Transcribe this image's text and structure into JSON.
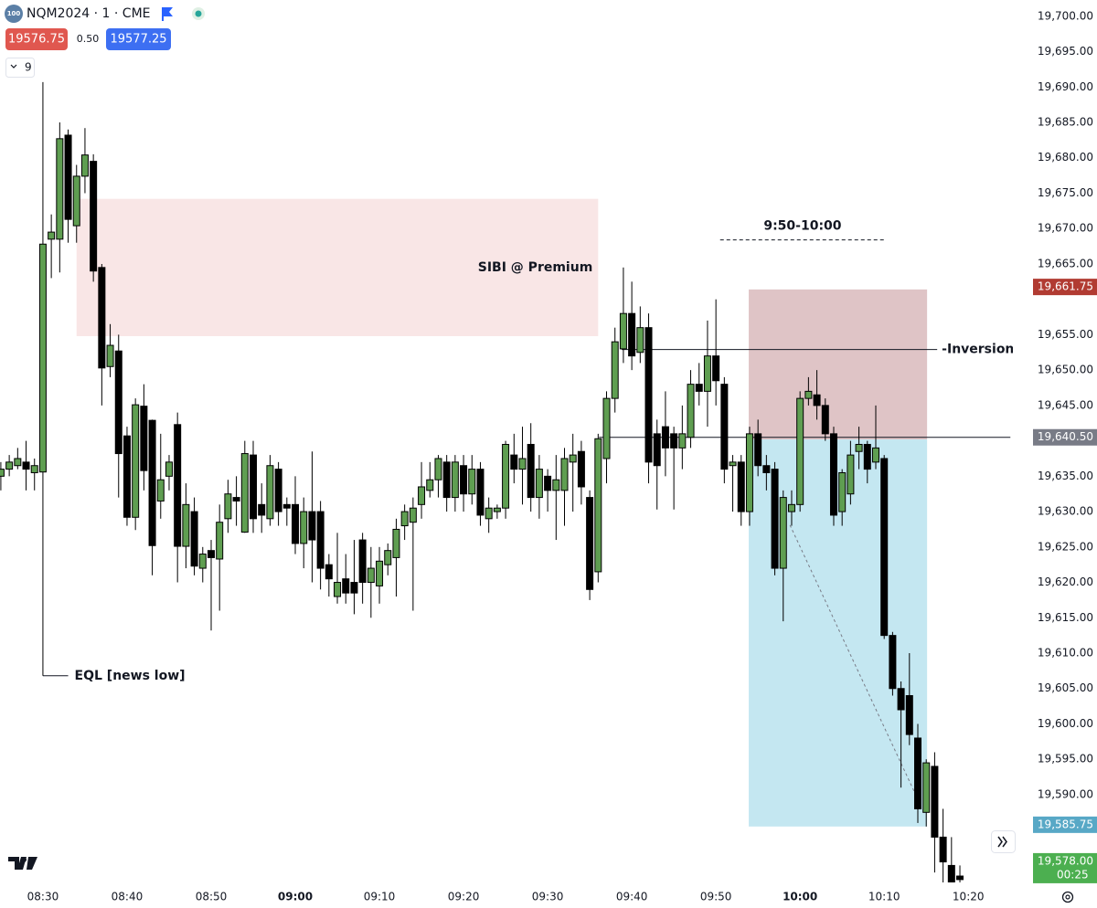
{
  "header": {
    "badge": "100",
    "symbol": "NQM2024 · 1 · CME",
    "bid": "19576.75",
    "spread": "0.50",
    "ask": "19577.25",
    "indicator_count": "9"
  },
  "chart_data": {
    "type": "candlestick",
    "x": [
      505,
      506,
      507,
      508,
      509,
      510,
      511,
      512,
      513,
      514,
      515,
      516,
      517,
      518,
      519,
      520,
      521,
      522,
      523,
      524,
      525,
      526,
      527,
      528,
      529,
      530,
      531,
      532,
      533,
      534,
      535,
      536,
      537,
      538,
      539,
      540,
      541,
      542,
      543,
      544,
      545,
      546,
      547,
      548,
      549,
      550,
      551,
      552,
      553,
      554,
      555,
      556,
      557,
      558,
      559,
      560,
      561,
      562,
      563,
      564,
      565,
      566,
      567,
      568,
      569,
      570,
      571,
      572,
      573,
      574,
      575,
      576,
      577,
      578,
      579,
      580,
      581,
      582,
      583,
      584,
      585,
      586,
      587,
      588,
      589,
      590,
      591,
      592,
      593,
      594,
      595,
      596,
      597,
      598,
      599,
      600,
      601,
      602,
      603,
      604,
      605,
      606,
      607,
      608,
      609,
      610,
      611,
      612,
      613,
      614,
      615,
      616,
      617,
      618,
      619
    ],
    "open": [
      19635,
      19636,
      19636.5,
      19637,
      19635.5,
      19635.6,
      19668.5,
      19668.5,
      19683.2,
      19670.4,
      19677.4,
      19679.5,
      19664.5,
      19650.5,
      19652.7,
      19640.7,
      19629.2,
      19644.9,
      19642.9,
      19631.5,
      19635,
      19642.3,
      19625.1,
      19630,
      19622,
      19624.5,
      19623.3,
      19629,
      19632,
      19627.1,
      19638,
      19631,
      19629,
      19636,
      19631,
      19631,
      19625.5,
      19630,
      19630,
      19622.5,
      19618,
      19620.5,
      19620,
      19626,
      19620,
      19619.5,
      19622.5,
      19623.5,
      19628,
      19628.5,
      19631,
      19633,
      19634.5,
      19637,
      19632,
      19636.5,
      19632.5,
      19636,
      19629,
      19630,
      19630.5,
      19638,
      19636,
      19639.5,
      19632,
      19635,
      19633,
      19633,
      19637,
      19638.5,
      19632,
      19621.5,
      19637.5,
      19646,
      19653,
      19658,
      19652.5,
      19656,
      19641,
      19642,
      19641,
      19639,
      19640.5,
      19648,
      19647,
      19652,
      19648,
      19636.5,
      19637,
      19630,
      19641,
      19636.5,
      19636,
      19622,
      19630,
      19631,
      19646,
      19646.5,
      19645,
      19641,
      19630,
      19632.5,
      19638.5,
      19639.5,
      19637,
      19637.5,
      19612.5,
      19605,
      19604,
      19598,
      19587.5,
      19594,
      19584,
      19580,
      19578.5
    ],
    "high": [
      19637,
      19638,
      19639,
      19640,
      19637.5,
      19690.7,
      19672,
      19685,
      19684,
      19679,
      19684.2,
      19680.5,
      19665,
      19656.5,
      19655,
      19642,
      19646,
      19648,
      19643,
      19641,
      19638,
      19644,
      19634,
      19632,
      19625,
      19626,
      19631,
      19634.5,
      19635,
      19640,
      19640,
      19634,
      19638,
      19637,
      19632,
      19635,
      19632,
      19638.5,
      19631.5,
      19624,
      19627,
      19624,
      19626,
      19627,
      19625,
      19625,
      19625.5,
      19629,
      19631,
      19632,
      19637,
      19637,
      19638,
      19638,
      19638,
      19638,
      19638,
      19637,
      19632,
      19631,
      19640,
      19641,
      19642,
      19642.5,
      19638,
      19636,
      19638,
      19639,
      19641,
      19640,
      19633,
      19641,
      19647,
      19656,
      19664.5,
      19662.5,
      19659,
      19658,
      19643,
      19647,
      19642,
      19645,
      19650,
      19651,
      19657,
      19660,
      19649,
      19638,
      19638,
      19642,
      19643,
      19638,
      19637,
      19633,
      19633,
      19647,
      19649,
      19650,
      19646,
      19642,
      19636,
      19640,
      19642,
      19640,
      19645,
      19638,
      19613,
      19606,
      19610,
      19600,
      19595,
      19596,
      19588,
      19584,
      19580
    ],
    "low": [
      19633,
      19635,
      19636,
      19633,
      19633,
      19606.8,
      19663,
      19663.8,
      19668,
      19668,
      19675,
      19662.5,
      19645,
      19649,
      19632,
      19628,
      19627.4,
      19633,
      19621,
      19629,
      19633,
      19620,
      19622,
      19621,
      19620,
      19613.2,
      19616,
      19627,
      19628,
      19627,
      19627,
      19627,
      19628,
      19628,
      19628,
      19624,
      19622,
      19620,
      19619,
      19618,
      19617,
      19617,
      19615.5,
      19617,
      19615,
      19617,
      19621,
      19618,
      19626,
      19616,
      19629,
      19632,
      19632,
      19630,
      19630,
      19630,
      19631,
      19628,
      19627,
      19629,
      19629,
      19634,
      19631,
      19630,
      19629,
      19630,
      19626,
      19628,
      19630,
      19631,
      19617.5,
      19620,
      19634,
      19644,
      19651,
      19650,
      19651,
      19634,
      19630.3,
      19635,
      19630.3,
      19636,
      19639,
      19645,
      19642,
      19645,
      19634,
      19630,
      19628,
      19628,
      19635,
      19633,
      19621,
      19614.5,
      19628,
      19630,
      19645,
      19643,
      19640,
      19628,
      19628,
      19631,
      19636,
      19634,
      19636,
      19612,
      19604,
      19591,
      19597,
      19586,
      19585.5,
      19579,
      19577,
      19576,
      19575
    ],
    "close": [
      19636,
      19637,
      19637.5,
      19636,
      19636.5,
      19667.8,
      19669.5,
      19682.7,
      19671.3,
      19677.4,
      19680.4,
      19664,
      19650.3,
      19653.5,
      19638.2,
      19629.2,
      19645.1,
      19635.8,
      19625.2,
      19634.5,
      19637,
      19625.1,
      19631,
      19622.3,
      19624,
      19623.5,
      19628.5,
      19632.5,
      19631.5,
      19638.2,
      19629,
      19629.5,
      19636.5,
      19630,
      19630.5,
      19625.5,
      19630,
      19626,
      19622,
      19620.5,
      19620,
      19618.5,
      19618.5,
      19620,
      19622,
      19623,
      19624.5,
      19627.5,
      19630,
      19630.5,
      19633.5,
      19634.5,
      19637.5,
      19632,
      19637,
      19632.5,
      19636,
      19629.5,
      19630.5,
      19630.5,
      19639.5,
      19636,
      19637.5,
      19632,
      19636,
      19633,
      19634.5,
      19637.5,
      19638,
      19633.5,
      19619,
      19640.3,
      19646,
      19654,
      19658,
      19652,
      19656,
      19637,
      19636.5,
      19639,
      19639,
      19641,
      19648,
      19647,
      19652,
      19648.5,
      19636,
      19637,
      19630,
      19641,
      19636.5,
      19635.5,
      19622,
      19632,
      19631,
      19646,
      19647,
      19645,
      19641,
      19629.5,
      19635.5,
      19638,
      19639.5,
      19636,
      19639,
      19612.5,
      19605,
      19602,
      19598.5,
      19588,
      19594.5,
      19584,
      19580.5,
      19577,
      19578
    ],
    "up_color": "#5f9e51",
    "down_color": "#000000",
    "xlim": [
      504.9,
      625.3
    ],
    "xticks": [
      {
        "value": 510,
        "label": "08:30"
      },
      {
        "value": 520,
        "label": "08:40"
      },
      {
        "value": 530,
        "label": "08:50"
      },
      {
        "value": 540,
        "label": "09:00"
      },
      {
        "value": 550,
        "label": "09:10"
      },
      {
        "value": 560,
        "label": "09:20"
      },
      {
        "value": 570,
        "label": "09:30"
      },
      {
        "value": 580,
        "label": "09:40"
      },
      {
        "value": 590,
        "label": "09:50"
      },
      {
        "value": 600,
        "label": "10:00"
      },
      {
        "value": 610,
        "label": "10:10"
      },
      {
        "value": 620,
        "label": "10:20"
      }
    ],
    "ylim": [
      19577.6,
      19702.3
    ],
    "yticks": [
      {
        "value": 19700,
        "label": "19,700.00"
      },
      {
        "value": 19695,
        "label": "19,695.00"
      },
      {
        "value": 19690,
        "label": "19,690.00"
      },
      {
        "value": 19685,
        "label": "19,685.00"
      },
      {
        "value": 19680,
        "label": "19,680.00"
      },
      {
        "value": 19675,
        "label": "19,675.00"
      },
      {
        "value": 19670,
        "label": "19,670.00"
      },
      {
        "value": 19665,
        "label": "19,665.00"
      },
      {
        "value": 19655,
        "label": "19,655.00"
      },
      {
        "value": 19650,
        "label": "19,650.00"
      },
      {
        "value": 19645,
        "label": "19,645.00"
      },
      {
        "value": 19635,
        "label": "19,635.00"
      },
      {
        "value": 19630,
        "label": "19,630.00"
      },
      {
        "value": 19625,
        "label": "19,625.00"
      },
      {
        "value": 19620,
        "label": "19,620.00"
      },
      {
        "value": 19615,
        "label": "19,615.00"
      },
      {
        "value": 19610,
        "label": "19,610.00"
      },
      {
        "value": 19605,
        "label": "19,605.00"
      },
      {
        "value": 19600,
        "label": "19,600.00"
      },
      {
        "value": 19595,
        "label": "19,595.00"
      },
      {
        "value": 19590,
        "label": "19,590.00"
      }
    ],
    "zones": [
      {
        "label": "SIBI @ Premium",
        "x": [
          514,
          576
        ],
        "y": [
          19654.8,
          19674.2
        ],
        "color": "#f9e6e6"
      },
      {
        "x": [
          593.9,
          615.1
        ],
        "y": [
          19640.2,
          19661.4
        ],
        "color": "#dfc4c6"
      },
      {
        "x": [
          593.9,
          615.1
        ],
        "y": [
          19585.5,
          19640.2
        ],
        "color": "#c4e7f1"
      }
    ],
    "lines": [
      {
        "label": "-Inversion",
        "x": [
          578.8,
          616.3
        ],
        "y": 19652.9,
        "dashed": false
      },
      {
        "x": [
          576.1,
          625.0
        ],
        "y": 19640.5,
        "dashed": false
      },
      {
        "label": "9:50-10:00",
        "x": [
          590.5,
          610.1
        ],
        "y": 19668.4,
        "dashed": true
      }
    ],
    "eql": {
      "label": "EQL [news low]",
      "x": [
        510,
        513
      ],
      "y": 19606.8
    },
    "trend": {
      "x": [
        598.8,
        614.0
      ],
      "y": [
        19628.1,
        19589.35
      ]
    },
    "price_labels": [
      {
        "value": 19661.75,
        "label": "19,661.75",
        "color": "#b13b32"
      },
      {
        "value": 19640.5,
        "label": "19,640.50",
        "color": "#787b86"
      },
      {
        "value": 19585.75,
        "label": "19,585.75",
        "color": "#58a8c6"
      },
      {
        "value": 19578,
        "label": "19,578.00",
        "color": "#4caf50",
        "countdown": "00:25"
      }
    ]
  }
}
